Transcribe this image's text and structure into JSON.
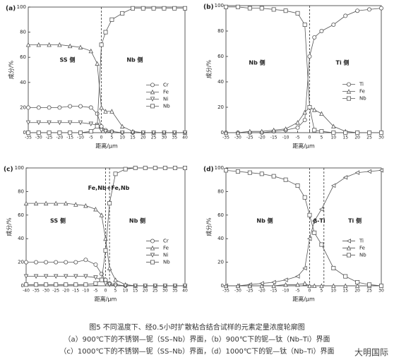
{
  "chart_data": [
    {
      "type": "line",
      "label": "(a)",
      "xlabel": "距离/μm",
      "ylabel": "成分/%",
      "x": [
        -35,
        -30,
        -25,
        -20,
        -15,
        -10,
        -5,
        -2,
        0,
        2,
        5,
        10,
        15,
        20,
        25,
        30,
        35,
        40
      ],
      "xlim": [
        -35,
        40
      ],
      "xticks": [
        -35,
        -30,
        -25,
        -20,
        -15,
        -10,
        -5,
        0,
        5,
        10,
        15,
        20,
        25,
        30,
        35,
        40
      ],
      "ylim": [
        0,
        100
      ],
      "yticks": [
        0,
        20,
        40,
        60,
        80,
        100
      ],
      "vlines": [
        0
      ],
      "legend": "right",
      "annotations": [
        "SS 侧",
        "Nb 侧"
      ],
      "series": [
        {
          "name": "Cr",
          "color": "#555555",
          "marker": "circle",
          "values": [
            20,
            20,
            20,
            20,
            21,
            21,
            20,
            15,
            5,
            2,
            1,
            0,
            0,
            0,
            0,
            0,
            0,
            0
          ]
        },
        {
          "name": "Fe",
          "color": "#555555",
          "marker": "triangle-up",
          "values": [
            70,
            70,
            70,
            70,
            69,
            68,
            65,
            55,
            20,
            17,
            17,
            5,
            1,
            0,
            0,
            0,
            0,
            0
          ]
        },
        {
          "name": "Ni",
          "color": "#555555",
          "marker": "triangle-down",
          "values": [
            8,
            8,
            8,
            8,
            8,
            8,
            7,
            6,
            2,
            1,
            0,
            0,
            0,
            0,
            0,
            0,
            0,
            0
          ]
        },
        {
          "name": "Nb",
          "color": "#555555",
          "marker": "square",
          "values": [
            0,
            0,
            0,
            0,
            0,
            0,
            1,
            5,
            70,
            80,
            90,
            95,
            99,
            99,
            99,
            99,
            99,
            99
          ]
        }
      ]
    },
    {
      "type": "line",
      "label": "(b)",
      "xlabel": "距离/μm",
      "ylabel": "成分/%",
      "x": [
        -35,
        -30,
        -25,
        -20,
        -15,
        -10,
        -5,
        -2,
        0,
        2,
        5,
        10,
        15,
        20,
        25,
        30
      ],
      "xlim": [
        -35,
        30
      ],
      "xticks": [
        -35,
        -30,
        -25,
        -20,
        -15,
        -10,
        -5,
        0,
        5,
        10,
        15,
        20,
        25,
        30
      ],
      "ylim": [
        0,
        100
      ],
      "yticks": [
        0,
        20,
        40,
        60,
        80,
        100
      ],
      "vlines": [
        0
      ],
      "legend": "right",
      "annotations": [
        "Nb 侧",
        "Ti 侧"
      ],
      "series": [
        {
          "name": "Ti",
          "color": "#555555",
          "marker": "circle",
          "values": [
            0,
            0,
            0,
            0,
            1,
            2,
            4,
            10,
            60,
            75,
            80,
            85,
            92,
            96,
            97,
            98
          ]
        },
        {
          "name": "Fe",
          "color": "#555555",
          "marker": "triangle-up",
          "values": [
            0,
            0,
            1,
            1,
            2,
            3,
            8,
            16,
            20,
            18,
            15,
            5,
            1,
            0,
            0,
            0
          ]
        },
        {
          "name": "Nb",
          "color": "#555555",
          "marker": "square",
          "values": [
            99,
            99,
            98,
            98,
            97,
            96,
            94,
            85,
            20,
            2,
            1,
            0,
            0,
            0,
            0,
            0
          ]
        }
      ]
    },
    {
      "type": "line",
      "label": "(c)",
      "xlabel": "距离/μm",
      "ylabel": "成分/%",
      "x": [
        -40,
        -35,
        -30,
        -25,
        -20,
        -15,
        -10,
        -5,
        -2,
        0,
        2,
        5,
        10,
        15,
        20,
        25,
        30,
        35,
        40
      ],
      "xlim": [
        -40,
        40
      ],
      "xticks": [
        -40,
        -35,
        -30,
        -25,
        -20,
        -15,
        -10,
        -5,
        0,
        5,
        10,
        15,
        20,
        25,
        30,
        35,
        40
      ],
      "ylim": [
        0,
        100
      ],
      "yticks": [
        0,
        20,
        40,
        60,
        80,
        100
      ],
      "vlines": [
        0,
        2
      ],
      "legend": "right",
      "annotations": [
        "Fe,Nb+Fe,Nb",
        "SS 侧",
        "Nb 侧"
      ],
      "series": [
        {
          "name": "Cr",
          "color": "#555555",
          "marker": "circle",
          "values": [
            20,
            20,
            20,
            20,
            20,
            20,
            22,
            18,
            10,
            5,
            2,
            1,
            0,
            0,
            0,
            0,
            0,
            0,
            0
          ]
        },
        {
          "name": "Fe",
          "color": "#555555",
          "marker": "triangle-up",
          "values": [
            70,
            70,
            70,
            70,
            70,
            69,
            68,
            65,
            60,
            40,
            15,
            5,
            1,
            0,
            0,
            0,
            0,
            0,
            0
          ]
        },
        {
          "name": "Ni",
          "color": "#555555",
          "marker": "triangle-down",
          "values": [
            8,
            8,
            8,
            8,
            8,
            8,
            8,
            7,
            5,
            2,
            1,
            0,
            0,
            0,
            0,
            0,
            0,
            0,
            0
          ]
        },
        {
          "name": "Nb",
          "color": "#555555",
          "marker": "square",
          "values": [
            1,
            1,
            1,
            1,
            1,
            1,
            1,
            2,
            5,
            30,
            70,
            95,
            99,
            100,
            100,
            100,
            100,
            100,
            100
          ]
        }
      ]
    },
    {
      "type": "line",
      "label": "(d)",
      "xlabel": "距离/μm",
      "ylabel": "成分/%",
      "x": [
        -35,
        -30,
        -25,
        -20,
        -15,
        -10,
        -5,
        -2,
        0,
        2,
        5,
        10,
        15,
        20,
        25,
        30
      ],
      "xlim": [
        -35,
        30
      ],
      "xticks": [
        -35,
        -30,
        -25,
        -20,
        -15,
        -10,
        -5,
        0,
        5,
        10,
        15,
        20,
        25,
        30
      ],
      "ylim": [
        0,
        100
      ],
      "yticks": [
        0,
        20,
        40,
        60,
        80,
        100
      ],
      "vlines": [
        0,
        6
      ],
      "legend": "right",
      "annotations": [
        "Nb 侧",
        "Ti 侧",
        "β-Ti"
      ],
      "series": [
        {
          "name": "Ti",
          "color": "#555555",
          "marker": "triangle-left",
          "values": [
            0,
            0,
            1,
            2,
            3,
            5,
            8,
            15,
            40,
            55,
            65,
            85,
            92,
            96,
            97,
            98
          ]
        },
        {
          "name": "Fe",
          "color": "#555555",
          "marker": "triangle-up",
          "values": [
            0,
            0,
            0,
            0,
            0,
            1,
            1,
            2,
            0,
            0,
            0,
            0,
            0,
            0,
            0,
            0
          ]
        },
        {
          "name": "Nb",
          "color": "#555555",
          "marker": "square",
          "values": [
            98,
            97,
            96,
            95,
            93,
            90,
            85,
            75,
            60,
            45,
            35,
            15,
            8,
            3,
            1,
            0
          ]
        }
      ]
    }
  ],
  "caption": {
    "title": "图5   不同温度下、经0.5小时扩散粘合结合试样的元素定量浓度轮廓图",
    "lines": [
      "（a）900℃下的不锈钢—铌（SS–Nb）界面，（b）900℃下的铌—钛（Nb–Ti）界面",
      "（c）1000℃下的不锈钢—铌（SS–Nb）界面，（d）1000℃下的铌—钛（Nb–Ti）界面"
    ]
  },
  "watermark": "大明国际"
}
